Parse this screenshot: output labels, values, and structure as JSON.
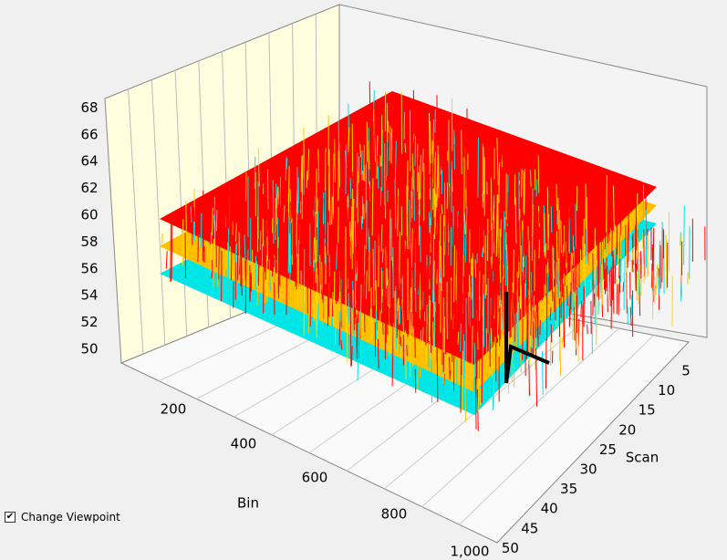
{
  "plot": {
    "z_ticks": [
      "50",
      "52",
      "54",
      "56",
      "58",
      "60",
      "62",
      "64",
      "66",
      "68"
    ],
    "bin_ticks": [
      "200",
      "400",
      "600",
      "800",
      "1,000"
    ],
    "bin_label": "Bin",
    "scan_ticks": [
      "5",
      "10",
      "15",
      "20",
      "25",
      "30",
      "35",
      "40",
      "45",
      "50"
    ],
    "scan_label": "Scan"
  },
  "controls": {
    "change_viewpoint": "Change Viewpoint"
  }
}
